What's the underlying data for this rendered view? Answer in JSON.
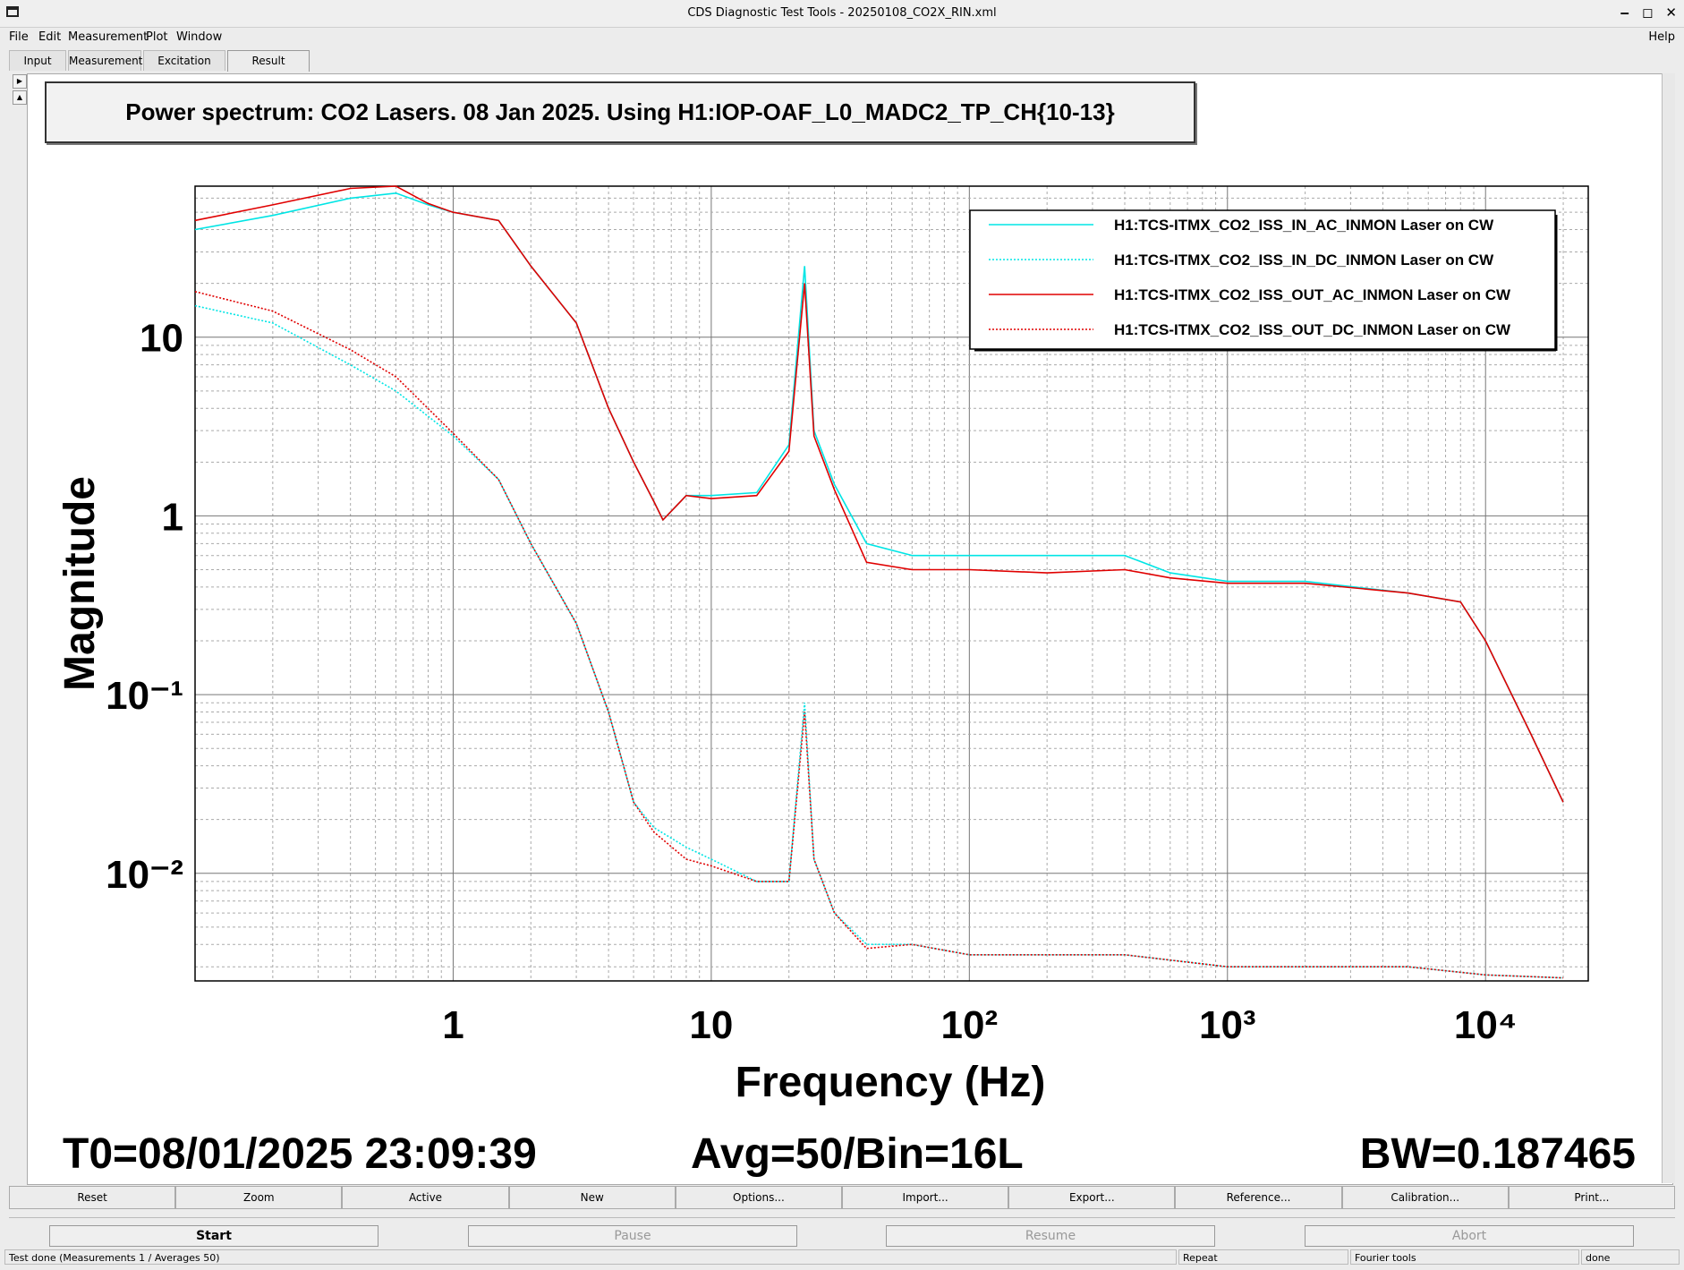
{
  "window": {
    "title": "CDS Diagnostic Test Tools - 20250108_CO2X_RIN.xml",
    "controls": [
      "‒",
      "◻",
      "✕"
    ]
  },
  "menu": {
    "file": "File",
    "edit": "Edit",
    "measurement": "Measurement",
    "plot": "Plot",
    "window": "Window",
    "help": "Help"
  },
  "tabs": [
    "Input",
    "Measurement",
    "Excitation",
    "Result"
  ],
  "active_tab": "Result",
  "plot": {
    "title": "Power spectrum: CO2 Lasers. 08 Jan 2025. Using H1:IOP-OAF_L0_MADC2_TP_CH{10-13}"
  },
  "stats": {
    "t0": "T0=08/01/2025 23:09:39",
    "avg": "Avg=50/Bin=16L",
    "bw": "BW=0.187465"
  },
  "buttons": [
    "Reset",
    "Zoom",
    "Active",
    "New",
    "Options...",
    "Import...",
    "Export...",
    "Reference...",
    "Calibration...",
    "Print..."
  ],
  "controls": {
    "start": "Start",
    "pause": "Pause",
    "resume": "Resume",
    "abort": "Abort"
  },
  "status": {
    "message": "Test done (Measurements 1 / Averages 50)",
    "mode": "Repeat",
    "tool": "Fourier tools",
    "state": "done"
  },
  "chart_data": {
    "type": "line",
    "xlabel": "Frequency (Hz)",
    "ylabel": "Magnitude",
    "xscale": "log",
    "yscale": "log",
    "xlim": [
      0.1,
      25000
    ],
    "ylim": [
      0.0025,
      70
    ],
    "x_ticks": [
      "1",
      "10",
      "10²",
      "10³",
      "10⁴"
    ],
    "y_ticks": [
      "10",
      "1",
      "10⁻¹",
      "10⁻²"
    ],
    "grid": true,
    "legend_position": "top-right",
    "series": [
      {
        "name": "H1:TCS-ITMX_CO2_ISS_IN_AC_INMON Laser on CW",
        "color": "#00e5e5",
        "style": "solid",
        "x": [
          0.1,
          0.2,
          0.4,
          0.6,
          0.8,
          1,
          1.5,
          2,
          3,
          4,
          5,
          6,
          6.5,
          8,
          10,
          15,
          20,
          23,
          25,
          30,
          40,
          60,
          100,
          200,
          400,
          600,
          1000,
          2000,
          5000,
          8000,
          10000,
          15000,
          20000
        ],
        "y": [
          40,
          48,
          60,
          64,
          55,
          50,
          45,
          25,
          12,
          4,
          2,
          1.2,
          0.95,
          1.3,
          1.3,
          1.35,
          2.5,
          25,
          3,
          1.5,
          0.7,
          0.6,
          0.6,
          0.6,
          0.6,
          0.48,
          0.43,
          0.43,
          0.37,
          0.33,
          0.2,
          0.06,
          0.025
        ]
      },
      {
        "name": "H1:TCS-ITMX_CO2_ISS_IN_DC_INMON Laser on CW",
        "color": "#00e5e5",
        "style": "dotted",
        "x": [
          0.1,
          0.2,
          0.4,
          0.6,
          1,
          1.5,
          2,
          3,
          4,
          5,
          6,
          8,
          10,
          15,
          20,
          23,
          25,
          30,
          40,
          60,
          100,
          200,
          400,
          1000,
          5000,
          10000,
          20000
        ],
        "y": [
          15,
          12,
          7,
          5,
          2.8,
          1.6,
          0.7,
          0.25,
          0.08,
          0.025,
          0.018,
          0.014,
          0.012,
          0.009,
          0.009,
          0.09,
          0.012,
          0.006,
          0.004,
          0.004,
          0.0035,
          0.0035,
          0.0035,
          0.003,
          0.003,
          0.0027,
          0.0026
        ]
      },
      {
        "name": "H1:TCS-ITMX_CO2_ISS_OUT_AC_INMON Laser on CW",
        "color": "#e00000",
        "style": "solid",
        "x": [
          0.1,
          0.2,
          0.4,
          0.6,
          0.8,
          1,
          1.5,
          2,
          3,
          4,
          5,
          6,
          6.5,
          8,
          10,
          15,
          20,
          23,
          25,
          30,
          40,
          60,
          100,
          200,
          400,
          600,
          1000,
          2000,
          5000,
          8000,
          10000,
          15000,
          20000
        ],
        "y": [
          45,
          55,
          68,
          70,
          56,
          50,
          45,
          25,
          12,
          4,
          2,
          1.2,
          0.95,
          1.3,
          1.25,
          1.3,
          2.3,
          20,
          2.8,
          1.4,
          0.55,
          0.5,
          0.5,
          0.48,
          0.5,
          0.45,
          0.42,
          0.42,
          0.37,
          0.33,
          0.2,
          0.06,
          0.025
        ]
      },
      {
        "name": "H1:TCS-ITMX_CO2_ISS_OUT_DC_INMON Laser on CW",
        "color": "#e00000",
        "style": "dotted",
        "x": [
          0.1,
          0.2,
          0.4,
          0.6,
          1,
          1.5,
          2,
          3,
          4,
          5,
          6,
          8,
          10,
          15,
          20,
          23,
          25,
          30,
          40,
          60,
          100,
          200,
          400,
          1000,
          5000,
          10000,
          20000
        ],
        "y": [
          18,
          14,
          8.5,
          6,
          2.9,
          1.6,
          0.7,
          0.25,
          0.08,
          0.025,
          0.017,
          0.012,
          0.011,
          0.009,
          0.009,
          0.08,
          0.012,
          0.006,
          0.0038,
          0.004,
          0.0035,
          0.0035,
          0.0035,
          0.003,
          0.003,
          0.0027,
          0.0026
        ]
      }
    ]
  }
}
